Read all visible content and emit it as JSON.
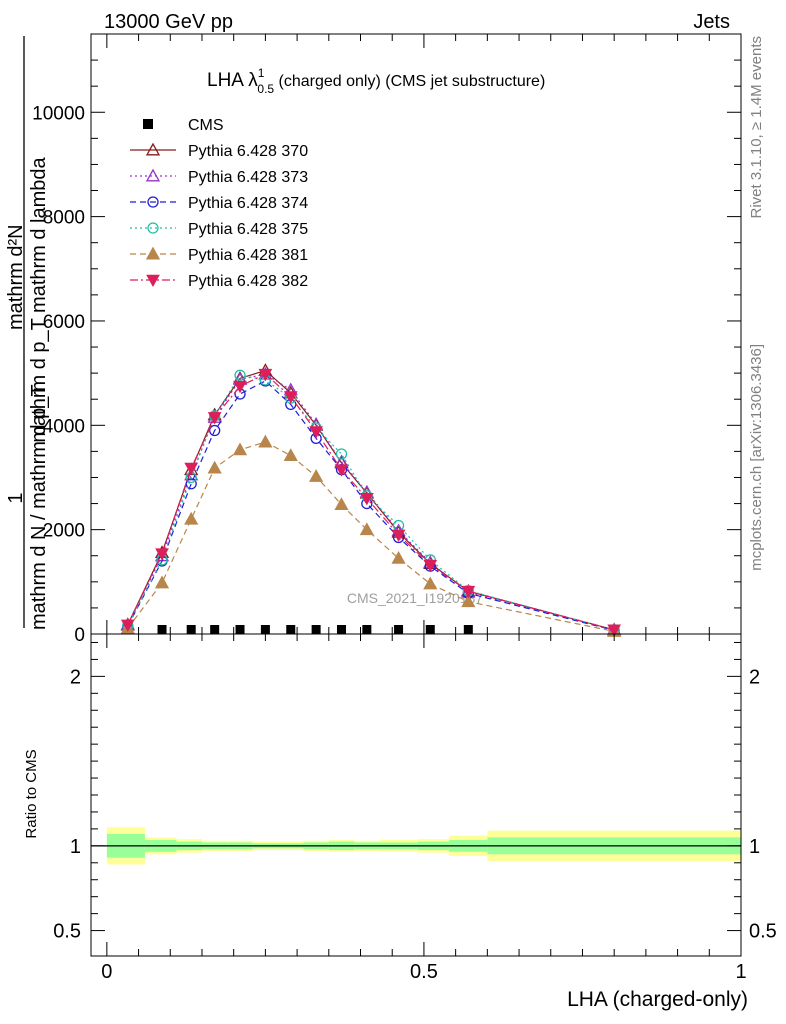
{
  "header": {
    "left": "13000 GeV pp",
    "right": "Jets"
  },
  "side_text": {
    "rivet": "Rivet 3.1.10, ≥ 1.4M events",
    "mcplots": "mcplots.cern.ch [arXiv:1306.3436]"
  },
  "chart_data": [
    {
      "type": "line",
      "title_main": "LHA λ",
      "title_sup": "1",
      "title_sub": "0.5",
      "title_rest": " (charged only) (CMS jet substructure)",
      "ylabel_top": "mathrm d²N",
      "ylabel_bot": "mathrm d p_T mathrm d lambda",
      "ylabel_left": "mathrm d N / mathrm d p_T",
      "ylabel_one": "1",
      "watermark": "CMS_2021_I1920187",
      "xlim": [
        -0.025,
        1.0
      ],
      "ylim": [
        0,
        11500
      ],
      "yticks": [
        0,
        2000,
        4000,
        6000,
        8000,
        10000
      ],
      "ytick_labels": [
        "0",
        "2000",
        "4000",
        "6000",
        "8000",
        "10000"
      ],
      "x": [
        0.033,
        0.087,
        0.133,
        0.17,
        0.21,
        0.25,
        0.29,
        0.33,
        0.37,
        0.41,
        0.46,
        0.51,
        0.57,
        0.8
      ],
      "data": {
        "name": "CMS",
        "x": [
          0.087,
          0.133,
          0.17,
          0.21,
          0.25,
          0.29,
          0.33,
          0.37,
          0.41,
          0.46,
          0.51,
          0.57
        ],
        "values": [
          0,
          0,
          0,
          0,
          0,
          0,
          0,
          0,
          0,
          0,
          0,
          0
        ]
      },
      "series": [
        {
          "name": "Pythia 6.428 370",
          "color": "#8b1a1a",
          "dash": "",
          "marker": "triangle-open",
          "values": [
            180,
            1560,
            3150,
            4200,
            4900,
            5050,
            4620,
            4000,
            3280,
            2700,
            1950,
            1350,
            820,
            80
          ]
        },
        {
          "name": "Pythia 6.428 373",
          "color": "#9932cc",
          "dash": "2,3",
          "marker": "triangle-open",
          "values": [
            170,
            1500,
            3050,
            4150,
            4880,
            4980,
            4680,
            4020,
            3300,
            2720,
            1980,
            1370,
            800,
            80
          ]
        },
        {
          "name": "Pythia 6.428 374",
          "color": "#1f1fd6",
          "dash": "6,4",
          "marker": "circle-open",
          "values": [
            150,
            1400,
            2880,
            3900,
            4600,
            4850,
            4400,
            3750,
            3150,
            2500,
            1850,
            1300,
            780,
            70
          ]
        },
        {
          "name": "Pythia 6.428 375",
          "color": "#20c0a8",
          "dash": "2,3",
          "marker": "circle-open",
          "values": [
            160,
            1420,
            3000,
            4180,
            4960,
            4870,
            4520,
            3950,
            3450,
            2650,
            2080,
            1420,
            830,
            80
          ]
        },
        {
          "name": "Pythia 6.428 381",
          "color": "#b8864b",
          "dash": "6,4",
          "marker": "triangle-filled",
          "values": [
            110,
            980,
            2200,
            3180,
            3530,
            3680,
            3420,
            3020,
            2480,
            2000,
            1450,
            960,
            620,
            50
          ]
        },
        {
          "name": "Pythia 6.428 382",
          "color": "#dc1f5a",
          "dash": "8,3,2,3",
          "marker": "triangle-down-filled",
          "values": [
            175,
            1540,
            3180,
            4150,
            4750,
            4980,
            4550,
            3880,
            3150,
            2600,
            1900,
            1320,
            820,
            80
          ]
        }
      ]
    },
    {
      "type": "area",
      "ylabel": "Ratio to CMS",
      "xlabel": "LHA (charged-only)",
      "xlim": [
        -0.025,
        1.0
      ],
      "ylim": [
        0.35,
        2.25
      ],
      "xticks": [
        0,
        0.5,
        1
      ],
      "xtick_labels": [
        "0",
        "0.5",
        "1"
      ],
      "yticks": [
        0.5,
        1,
        2
      ],
      "ytick_labels": [
        "0.5",
        "1",
        "2"
      ],
      "ytick_labels_right": [
        "0.5",
        "1",
        "2"
      ],
      "reference": 1,
      "bins": [
        {
          "lo": 0.0,
          "hi": 0.06,
          "stat": 0.07,
          "total": 0.11
        },
        {
          "lo": 0.06,
          "hi": 0.11,
          "stat": 0.035,
          "total": 0.05
        },
        {
          "lo": 0.11,
          "hi": 0.15,
          "stat": 0.025,
          "total": 0.04
        },
        {
          "lo": 0.15,
          "hi": 0.19,
          "stat": 0.02,
          "total": 0.03
        },
        {
          "lo": 0.19,
          "hi": 0.23,
          "stat": 0.02,
          "total": 0.03
        },
        {
          "lo": 0.23,
          "hi": 0.27,
          "stat": 0.015,
          "total": 0.025
        },
        {
          "lo": 0.27,
          "hi": 0.31,
          "stat": 0.015,
          "total": 0.025
        },
        {
          "lo": 0.31,
          "hi": 0.35,
          "stat": 0.02,
          "total": 0.03
        },
        {
          "lo": 0.35,
          "hi": 0.39,
          "stat": 0.025,
          "total": 0.035
        },
        {
          "lo": 0.39,
          "hi": 0.43,
          "stat": 0.02,
          "total": 0.03
        },
        {
          "lo": 0.43,
          "hi": 0.49,
          "stat": 0.02,
          "total": 0.035
        },
        {
          "lo": 0.49,
          "hi": 0.54,
          "stat": 0.025,
          "total": 0.04
        },
        {
          "lo": 0.54,
          "hi": 0.6,
          "stat": 0.035,
          "total": 0.06
        },
        {
          "lo": 0.6,
          "hi": 1.0,
          "stat": 0.05,
          "total": 0.09
        }
      ]
    }
  ]
}
